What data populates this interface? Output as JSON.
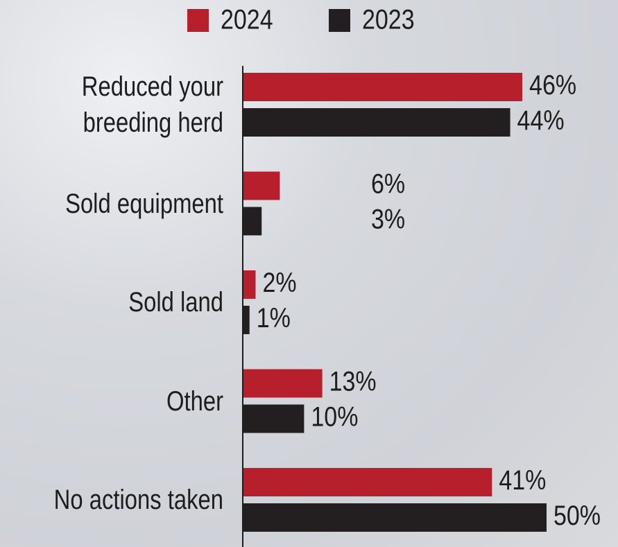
{
  "chart_data": {
    "type": "bar",
    "orientation": "horizontal",
    "categories": [
      "Reduced your breeding herd",
      "Sold equipment",
      "Sold land",
      "Other",
      "No actions taken"
    ],
    "series": [
      {
        "name": "2024",
        "color": "#b71f2d",
        "values": [
          46,
          6,
          2,
          13,
          41
        ],
        "value_labels": [
          "46%",
          "6%",
          "2%",
          "13%",
          "41%"
        ]
      },
      {
        "name": "2023",
        "color": "#231f20",
        "values": [
          44,
          3,
          1,
          10,
          50
        ],
        "value_labels": [
          "44%",
          "3%",
          "1%",
          "10%",
          "50%"
        ]
      }
    ],
    "xlim": [
      0,
      50
    ],
    "legend": "top"
  }
}
